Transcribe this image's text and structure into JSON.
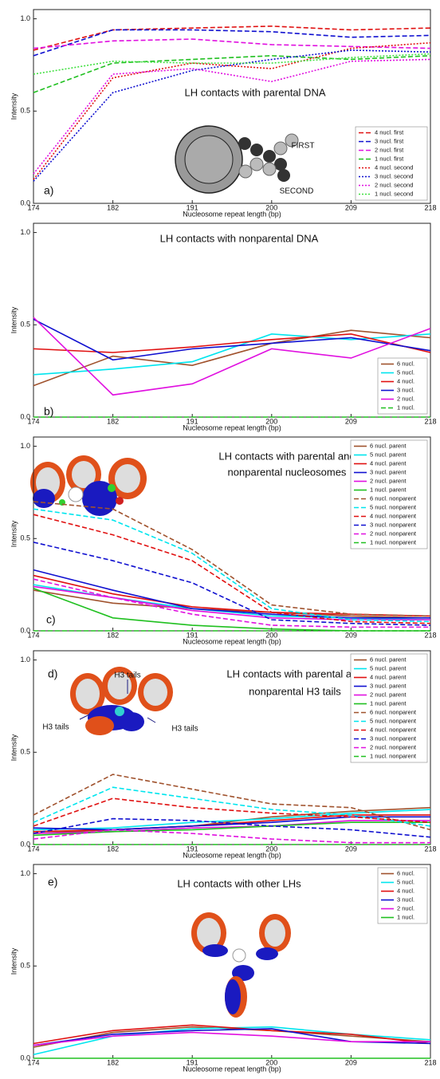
{
  "chart_data": [
    {
      "type": "line",
      "panel_label": "a)",
      "title_lines": [
        "LH contacts with parental DNA"
      ],
      "xlabel": "Nucleosome repeat length (bp)",
      "ylabel": "Intensity",
      "categories": [
        "174",
        "182",
        "191",
        "200",
        "209",
        "218"
      ],
      "ylim": [
        0,
        1.05
      ],
      "yticks": [
        {
          "value": 0,
          "label": "0.0"
        },
        {
          "value": 0.5,
          "label": "0.5"
        },
        {
          "value": 1,
          "label": "1.0"
        }
      ],
      "legend": "lower right",
      "annotations": [
        "FIRST",
        "SECOND"
      ],
      "series": [
        {
          "name": "4 nucl. first",
          "color": "#e01010",
          "style": "dashed",
          "values": [
            0.83,
            0.94,
            0.95,
            0.96,
            0.94,
            0.95
          ]
        },
        {
          "name": "3 nucl. first",
          "color": "#1010d0",
          "style": "dashed",
          "values": [
            0.8,
            0.94,
            0.94,
            0.93,
            0.9,
            0.91
          ]
        },
        {
          "name": "2 nucl. first",
          "color": "#e010e0",
          "style": "dashed",
          "values": [
            0.84,
            0.88,
            0.89,
            0.86,
            0.85,
            0.84
          ]
        },
        {
          "name": "1 nucl. first",
          "color": "#20c020",
          "style": "dashed",
          "values": [
            0.6,
            0.76,
            0.78,
            0.8,
            0.78,
            0.8
          ]
        },
        {
          "name": "4 nucl. second",
          "color": "#e01010",
          "style": "dotted",
          "values": [
            0.13,
            0.68,
            0.76,
            0.73,
            0.84,
            0.87
          ]
        },
        {
          "name": "3 nucl. second",
          "color": "#1010d0",
          "style": "dotted",
          "values": [
            0.12,
            0.6,
            0.72,
            0.78,
            0.83,
            0.82
          ]
        },
        {
          "name": "2 nucl. second",
          "color": "#e010e0",
          "style": "dotted",
          "values": [
            0.16,
            0.7,
            0.73,
            0.66,
            0.77,
            0.78
          ]
        },
        {
          "name": "1 nucl. second",
          "color": "#40e040",
          "style": "dotted",
          "values": [
            0.7,
            0.77,
            0.76,
            0.76,
            0.79,
            0.81
          ]
        }
      ]
    },
    {
      "type": "line",
      "panel_label": "b)",
      "title_lines": [
        "LH contacts with nonparental DNA"
      ],
      "xlabel": "Nucleosome repeat length (bp)",
      "ylabel": "Intensity",
      "categories": [
        "174",
        "182",
        "191",
        "200",
        "209",
        "218"
      ],
      "ylim": [
        0,
        1.05
      ],
      "yticks": [
        {
          "value": 0,
          "label": "0.0"
        },
        {
          "value": 0.5,
          "label": "0.5"
        },
        {
          "value": 1,
          "label": "1.0"
        }
      ],
      "legend": "lower right",
      "series": [
        {
          "name": "6 nucl.",
          "color": "#a0522d",
          "style": "solid",
          "values": [
            0.17,
            0.33,
            0.28,
            0.4,
            0.47,
            0.43
          ]
        },
        {
          "name": "5 nucl.",
          "color": "#00e5ee",
          "style": "solid",
          "values": [
            0.23,
            0.26,
            0.3,
            0.45,
            0.42,
            0.45
          ]
        },
        {
          "name": "4 nucl.",
          "color": "#e01010",
          "style": "solid",
          "values": [
            0.37,
            0.35,
            0.38,
            0.42,
            0.45,
            0.35
          ]
        },
        {
          "name": "3 nucl.",
          "color": "#1010d0",
          "style": "solid",
          "values": [
            0.53,
            0.31,
            0.37,
            0.4,
            0.43,
            0.36
          ]
        },
        {
          "name": "2 nucl.",
          "color": "#e010e0",
          "style": "solid",
          "values": [
            0.54,
            0.12,
            0.18,
            0.37,
            0.32,
            0.48
          ]
        },
        {
          "name": "1 nucl.",
          "color": "#20c020",
          "style": "dashed",
          "values": [
            0,
            0,
            0,
            0,
            0,
            0
          ]
        }
      ]
    },
    {
      "type": "line",
      "panel_label": "c)",
      "title_lines": [
        "LH contacts with parental and",
        "nonparental nucleosomes"
      ],
      "xlabel": "Nucleosome repeat length (bp)",
      "ylabel": "Intensity",
      "categories": [
        "174",
        "182",
        "191",
        "200",
        "209",
        "218"
      ],
      "ylim": [
        0,
        1.05
      ],
      "yticks": [
        {
          "value": 0,
          "label": "0.0"
        },
        {
          "value": 0.5,
          "label": "0.5"
        },
        {
          "value": 1,
          "label": "1.0"
        }
      ],
      "legend": "upper right",
      "series": [
        {
          "name": "6 nucl. parent",
          "color": "#a0522d",
          "style": "solid",
          "values": [
            0.22,
            0.15,
            0.12,
            0.1,
            0.08,
            0.07
          ]
        },
        {
          "name": "5 nucl. parent",
          "color": "#00e5ee",
          "style": "solid",
          "values": [
            0.25,
            0.18,
            0.12,
            0.08,
            0.07,
            0.06
          ]
        },
        {
          "name": "4 nucl. parent",
          "color": "#e01010",
          "style": "solid",
          "values": [
            0.3,
            0.2,
            0.13,
            0.1,
            0.09,
            0.08
          ]
        },
        {
          "name": "3 nucl. parent",
          "color": "#1010d0",
          "style": "solid",
          "values": [
            0.33,
            0.22,
            0.12,
            0.09,
            0.07,
            0.07
          ]
        },
        {
          "name": "2 nucl. parent",
          "color": "#e010e0",
          "style": "solid",
          "values": [
            0.24,
            0.18,
            0.11,
            0.07,
            0.06,
            0.06
          ]
        },
        {
          "name": "1 nucl. parent",
          "color": "#20c020",
          "style": "solid",
          "values": [
            0.23,
            0.07,
            0.03,
            0.01,
            0,
            0
          ]
        },
        {
          "name": "6 nucl. nonparent",
          "color": "#a0522d",
          "style": "dashed",
          "values": [
            0.7,
            0.66,
            0.44,
            0.14,
            0.09,
            0.08
          ]
        },
        {
          "name": "5 nucl. nonparent",
          "color": "#00e5ee",
          "style": "dashed",
          "values": [
            0.66,
            0.6,
            0.42,
            0.12,
            0.06,
            0.05
          ]
        },
        {
          "name": "4 nucl. nonparent",
          "color": "#e01010",
          "style": "dashed",
          "values": [
            0.63,
            0.52,
            0.38,
            0.1,
            0.05,
            0.04
          ]
        },
        {
          "name": "3 nucl. nonparent",
          "color": "#1010d0",
          "style": "dashed",
          "values": [
            0.48,
            0.38,
            0.26,
            0.06,
            0.04,
            0.03
          ]
        },
        {
          "name": "2 nucl. nonparent",
          "color": "#e010e0",
          "style": "dashed",
          "values": [
            0.28,
            0.18,
            0.09,
            0.03,
            0.02,
            0.02
          ]
        },
        {
          "name": "1 nucl. nonparent",
          "color": "#20c020",
          "style": "dashed",
          "values": [
            0,
            0,
            0,
            0,
            0,
            0
          ]
        }
      ]
    },
    {
      "type": "line",
      "panel_label": "d)",
      "title_lines": [
        "LH contacts with parental and",
        "nonparental H3 tails"
      ],
      "xlabel": "Nucleosome repeat length (bp)",
      "ylabel": "Intensity",
      "categories": [
        "174",
        "182",
        "191",
        "200",
        "209",
        "218"
      ],
      "ylim": [
        0,
        1.05
      ],
      "yticks": [
        {
          "value": 0,
          "label": "0.0"
        },
        {
          "value": 0.5,
          "label": "0.5"
        },
        {
          "value": 1,
          "label": "1.0"
        }
      ],
      "legend": "upper right",
      "annotations": [
        "H3 tails",
        "H3 tails",
        "H3 tails"
      ],
      "series": [
        {
          "name": "6 nucl. parent",
          "color": "#a0522d",
          "style": "solid",
          "values": [
            0.06,
            0.08,
            0.1,
            0.15,
            0.18,
            0.2
          ]
        },
        {
          "name": "5 nucl. parent",
          "color": "#00e5ee",
          "style": "solid",
          "values": [
            0.08,
            0.09,
            0.12,
            0.14,
            0.17,
            0.19
          ]
        },
        {
          "name": "4 nucl. parent",
          "color": "#e01010",
          "style": "solid",
          "values": [
            0.07,
            0.08,
            0.1,
            0.13,
            0.16,
            0.16
          ]
        },
        {
          "name": "3 nucl. parent",
          "color": "#1010d0",
          "style": "solid",
          "values": [
            0.09,
            0.08,
            0.1,
            0.12,
            0.15,
            0.15
          ]
        },
        {
          "name": "2 nucl. parent",
          "color": "#e010e0",
          "style": "solid",
          "values": [
            0.06,
            0.07,
            0.09,
            0.1,
            0.13,
            0.13
          ]
        },
        {
          "name": "1 nucl. parent",
          "color": "#20c020",
          "style": "solid",
          "values": [
            0.05,
            0.07,
            0.08,
            0.1,
            0.12,
            0.12
          ]
        },
        {
          "name": "6 nucl. nonparent",
          "color": "#a0522d",
          "style": "dashed",
          "values": [
            0.16,
            0.38,
            0.3,
            0.22,
            0.2,
            0.08
          ]
        },
        {
          "name": "5 nucl. nonparent",
          "color": "#00e5ee",
          "style": "dashed",
          "values": [
            0.12,
            0.31,
            0.25,
            0.19,
            0.16,
            0.1
          ]
        },
        {
          "name": "4 nucl. nonparent",
          "color": "#e01010",
          "style": "dashed",
          "values": [
            0.1,
            0.25,
            0.2,
            0.17,
            0.15,
            0.12
          ]
        },
        {
          "name": "3 nucl. nonparent",
          "color": "#1010d0",
          "style": "dashed",
          "values": [
            0.06,
            0.14,
            0.13,
            0.1,
            0.08,
            0.04
          ]
        },
        {
          "name": "2 nucl. nonparent",
          "color": "#e010e0",
          "style": "dashed",
          "values": [
            0.03,
            0.08,
            0.06,
            0.03,
            0.01,
            0.01
          ]
        },
        {
          "name": "1 nucl. nonparent",
          "color": "#20c020",
          "style": "dashed",
          "values": [
            0,
            0,
            0,
            0,
            0,
            0
          ]
        }
      ]
    },
    {
      "type": "line",
      "panel_label": "e)",
      "title_lines": [
        "LH contacts with other LHs"
      ],
      "xlabel": "Nucleosome repeat length (bp)",
      "ylabel": "Intensity",
      "categories": [
        "174",
        "182",
        "191",
        "200",
        "209",
        "218"
      ],
      "ylim": [
        0,
        1.05
      ],
      "yticks": [
        {
          "value": 0,
          "label": "0.0"
        },
        {
          "value": 0.5,
          "label": "0.5"
        },
        {
          "value": 1,
          "label": "1.0"
        }
      ],
      "legend": "upper right",
      "series": [
        {
          "name": "6 nucl.",
          "color": "#a0522d",
          "style": "solid",
          "values": [
            0.06,
            0.14,
            0.17,
            0.15,
            0.12,
            0.09
          ]
        },
        {
          "name": "5 nucl.",
          "color": "#00e5ee",
          "style": "solid",
          "values": [
            0.02,
            0.12,
            0.16,
            0.17,
            0.13,
            0.1
          ]
        },
        {
          "name": "4 nucl.",
          "color": "#e01010",
          "style": "solid",
          "values": [
            0.08,
            0.15,
            0.18,
            0.15,
            0.13,
            0.08
          ]
        },
        {
          "name": "3 nucl.",
          "color": "#1010d0",
          "style": "solid",
          "values": [
            0.07,
            0.13,
            0.15,
            0.16,
            0.09,
            0.08
          ]
        },
        {
          "name": "2 nucl.",
          "color": "#e010e0",
          "style": "solid",
          "values": [
            0.07,
            0.12,
            0.14,
            0.12,
            0.09,
            0.09
          ]
        },
        {
          "name": "1 nucl.",
          "color": "#20c020",
          "style": "solid",
          "values": [
            0,
            0,
            0,
            0,
            0,
            0
          ]
        }
      ]
    }
  ]
}
